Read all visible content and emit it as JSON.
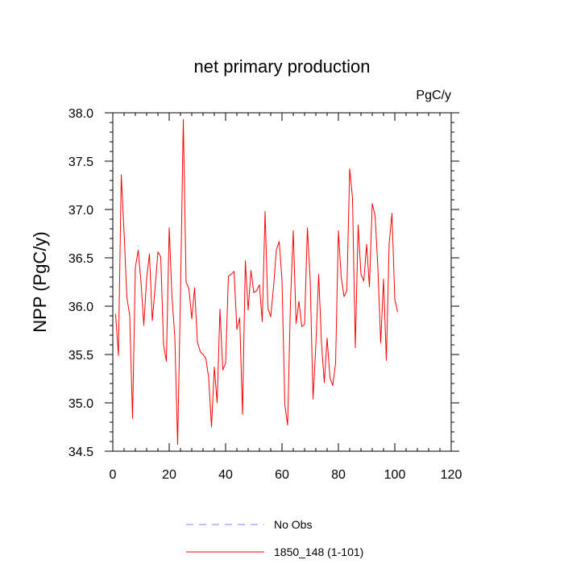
{
  "chart_data": {
    "type": "line",
    "title": "net primary production",
    "units": "PgC/y",
    "xlabel": "",
    "ylabel": "NPP  (PgC/y)",
    "xlim": [
      0,
      120
    ],
    "ylim": [
      34.5,
      38.0
    ],
    "xticks": [
      "0",
      "20",
      "40",
      "60",
      "80",
      "100",
      "120"
    ],
    "yticks": [
      "34.5",
      "35.0",
      "35.5",
      "36.0",
      "36.5",
      "37.0",
      "37.5",
      "38.0"
    ],
    "grid": false,
    "legend_position": "bottom",
    "series": [
      {
        "name": "No Obs",
        "color": "#8080ff",
        "style": "dashed",
        "x": [],
        "values": []
      },
      {
        "name": "1850_148 (1-101)",
        "color": "#ff0000",
        "style": "solid",
        "x": [
          1,
          2,
          3,
          4,
          5,
          6,
          7,
          8,
          9,
          10,
          11,
          12,
          13,
          14,
          15,
          16,
          17,
          18,
          19,
          20,
          21,
          22,
          23,
          24,
          25,
          26,
          27,
          28,
          29,
          30,
          31,
          32,
          33,
          34,
          35,
          36,
          37,
          38,
          39,
          40,
          41,
          42,
          43,
          44,
          45,
          46,
          47,
          48,
          49,
          50,
          51,
          52,
          53,
          54,
          55,
          56,
          57,
          58,
          59,
          60,
          61,
          62,
          63,
          64,
          65,
          66,
          67,
          68,
          69,
          70,
          71,
          72,
          73,
          74,
          75,
          76,
          77,
          78,
          79,
          80,
          81,
          82,
          83,
          84,
          85,
          86,
          87,
          88,
          89,
          90,
          91,
          92,
          93,
          94,
          95,
          96,
          97,
          98,
          99,
          100,
          101
        ],
        "values": [
          35.92,
          35.49,
          37.36,
          36.76,
          36.09,
          35.9,
          34.84,
          36.4,
          36.58,
          36.25,
          35.8,
          36.29,
          36.54,
          35.85,
          36.19,
          36.56,
          36.51,
          35.6,
          35.43,
          36.81,
          36.09,
          35.68,
          34.57,
          36.13,
          37.93,
          36.25,
          36.18,
          35.87,
          36.19,
          35.63,
          35.53,
          35.5,
          35.46,
          35.26,
          34.75,
          35.37,
          35.0,
          35.97,
          35.34,
          35.41,
          36.31,
          36.33,
          36.36,
          35.76,
          35.88,
          34.88,
          36.47,
          35.96,
          36.37,
          36.14,
          36.16,
          36.22,
          35.84,
          36.98,
          35.98,
          35.89,
          36.2,
          36.58,
          36.67,
          36.27,
          34.98,
          34.77,
          36.04,
          36.78,
          35.82,
          36.05,
          35.79,
          35.81,
          36.81,
          36.27,
          35.04,
          35.59,
          36.33,
          35.62,
          35.21,
          35.67,
          35.26,
          35.18,
          35.41,
          36.78,
          36.3,
          36.1,
          36.16,
          37.42,
          37.12,
          35.57,
          36.84,
          36.33,
          36.26,
          36.64,
          36.2,
          37.06,
          36.94,
          36.4,
          35.62,
          36.28,
          35.44,
          36.65,
          36.96,
          36.07,
          35.94
        ]
      }
    ]
  }
}
